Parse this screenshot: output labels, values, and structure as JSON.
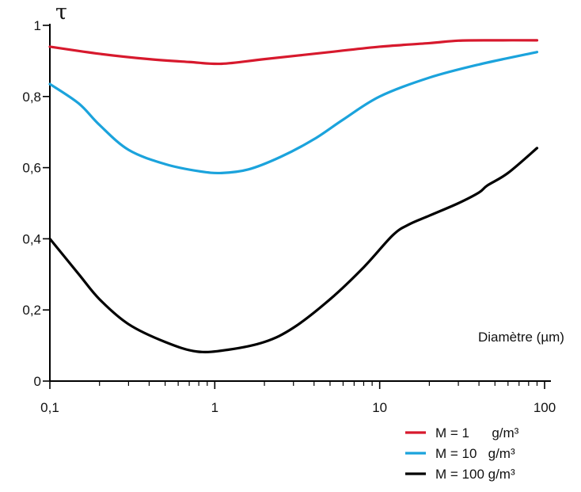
{
  "chart_data": {
    "type": "line",
    "title": "",
    "ylabel": "τ",
    "xlabel": "Diamètre (µm)",
    "x_scale": "log",
    "xlim": [
      0.1,
      100
    ],
    "ylim": [
      0,
      1
    ],
    "x_ticks": [
      0.1,
      1,
      10,
      100
    ],
    "x_tick_labels": [
      "0,1",
      "1",
      "10",
      "100"
    ],
    "y_ticks": [
      0,
      0.2,
      0.4,
      0.6,
      0.8,
      1
    ],
    "y_tick_labels": [
      "0",
      "0,2",
      "0,4",
      "0,6",
      "0,8",
      "1"
    ],
    "grid": false,
    "legend_position": "bottom-right",
    "series": [
      {
        "name": "M = 1      g/m³",
        "color": "#d7192d",
        "x": [
          0.1,
          0.2,
          0.4,
          0.7,
          1.1,
          2,
          5,
          10,
          20,
          30,
          50,
          90
        ],
        "y": [
          0.94,
          0.92,
          0.905,
          0.897,
          0.892,
          0.905,
          0.925,
          0.94,
          0.95,
          0.957,
          0.958,
          0.958
        ]
      },
      {
        "name": "M = 10   g/m³",
        "color": "#1ba3dc",
        "x": [
          0.1,
          0.15,
          0.2,
          0.3,
          0.5,
          0.8,
          1.1,
          1.6,
          2.5,
          4,
          6,
          10,
          20,
          40,
          90
        ],
        "y": [
          0.835,
          0.78,
          0.72,
          0.65,
          0.61,
          0.59,
          0.585,
          0.595,
          0.63,
          0.68,
          0.735,
          0.8,
          0.853,
          0.89,
          0.925
        ]
      },
      {
        "name": "M = 100 g/m³",
        "color": "#000000",
        "x": [
          0.1,
          0.15,
          0.2,
          0.3,
          0.5,
          0.78,
          1.2,
          2,
          3,
          5,
          8,
          12,
          15,
          20,
          30,
          40,
          45,
          60,
          90
        ],
        "y": [
          0.4,
          0.3,
          0.23,
          0.16,
          0.11,
          0.083,
          0.088,
          0.11,
          0.15,
          0.23,
          0.32,
          0.41,
          0.44,
          0.465,
          0.5,
          0.53,
          0.55,
          0.585,
          0.655
        ]
      }
    ]
  }
}
